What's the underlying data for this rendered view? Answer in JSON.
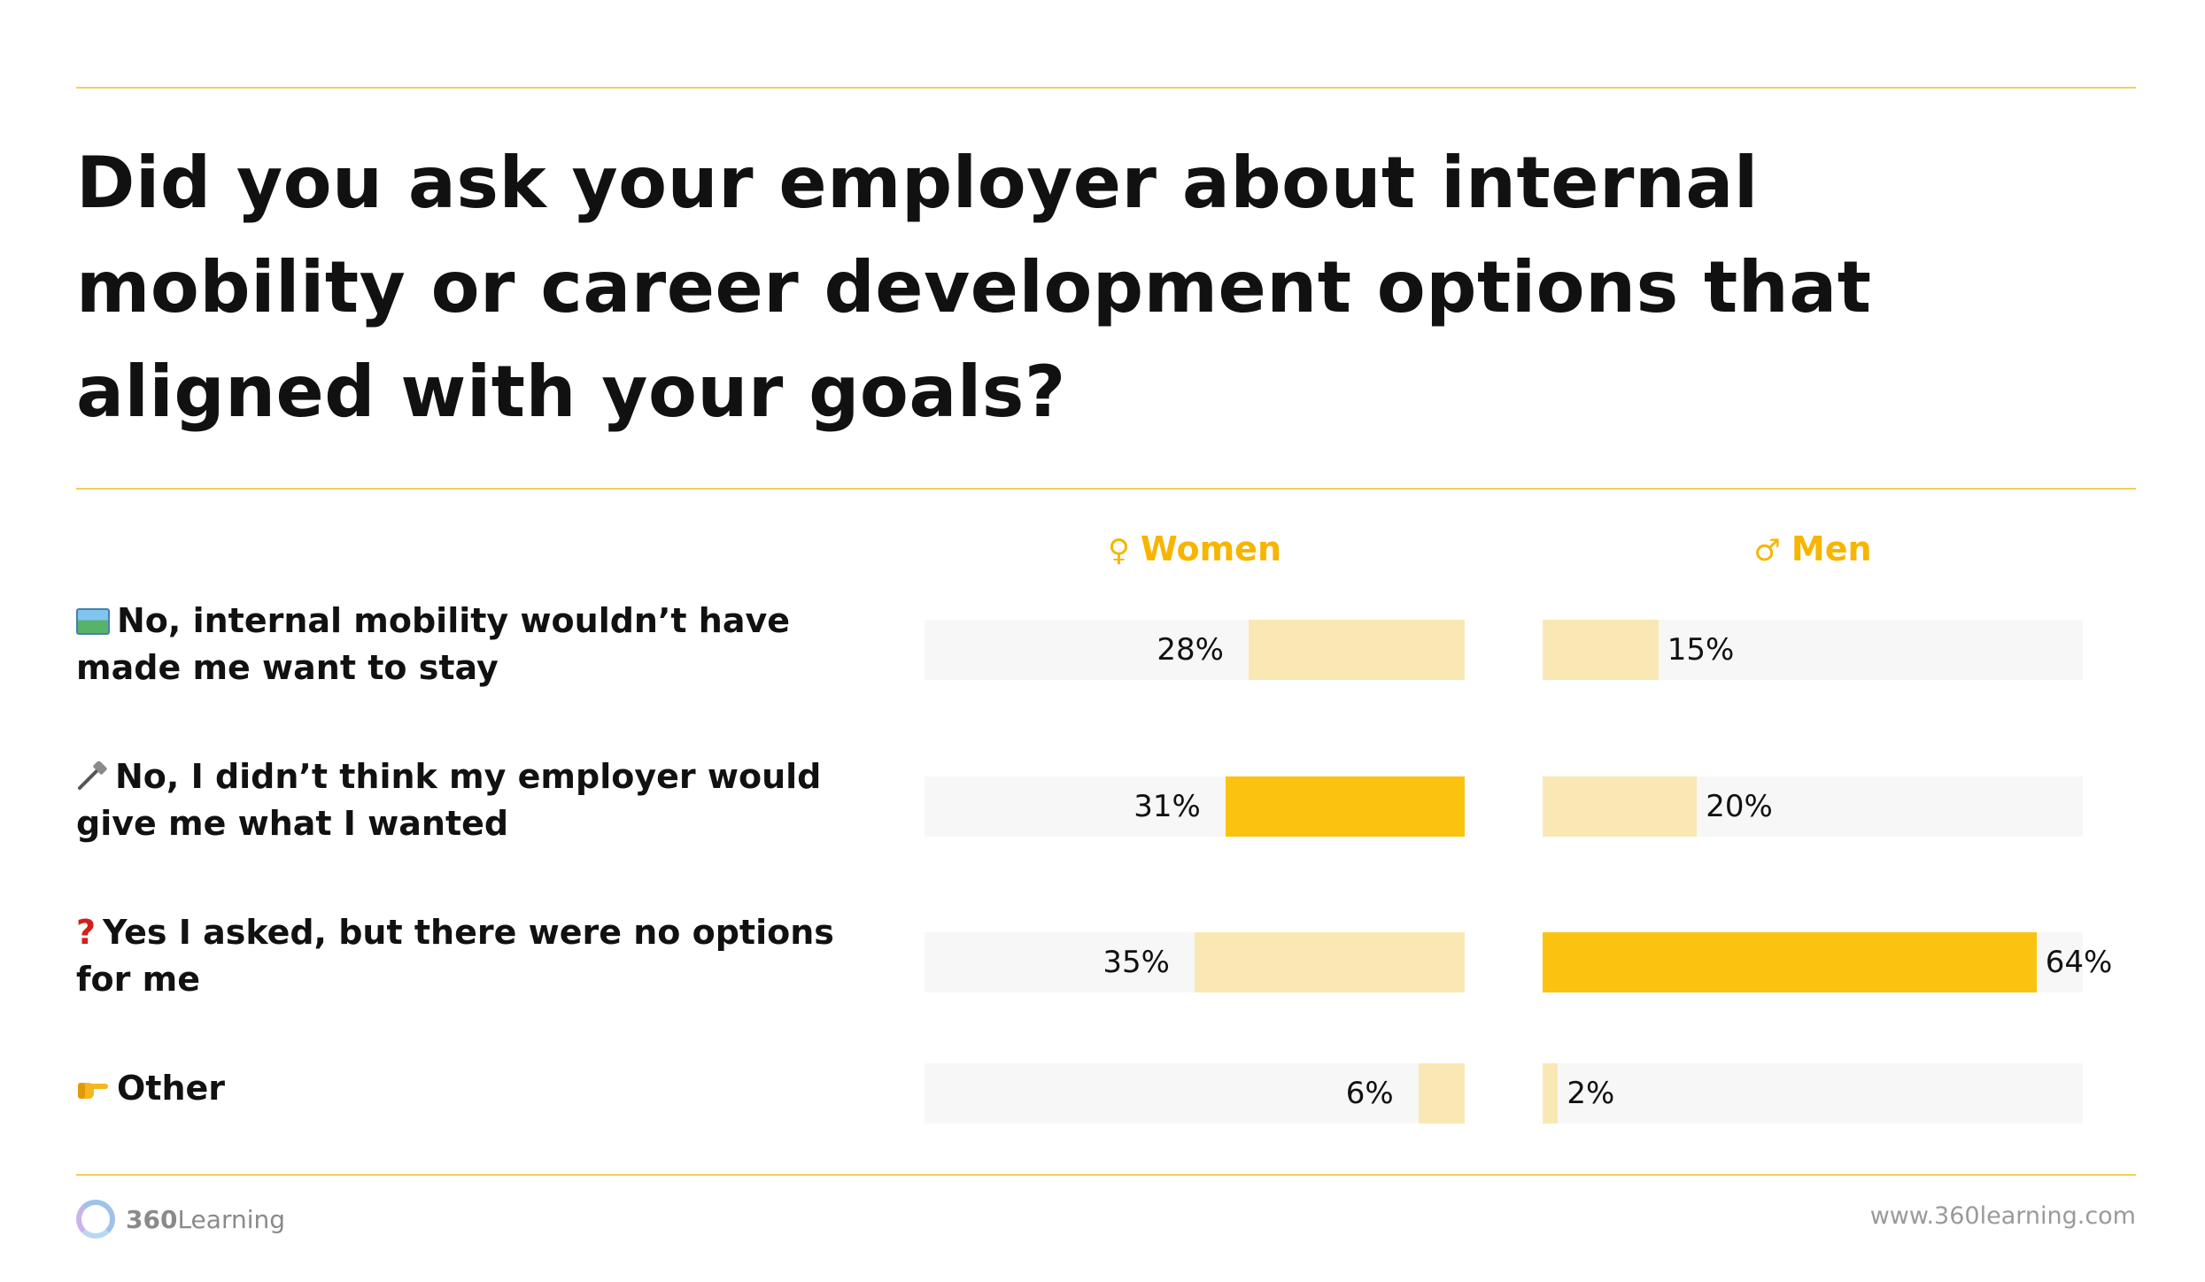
{
  "chart_data": {
    "type": "bar",
    "title": "Did you ask your employer about internal mobility or career development options that aligned with your goals?",
    "categories": [
      "No, internal mobility wouldn’t have made me want to stay",
      "No, I didn’t think my employer would give me what I wanted",
      "Yes I asked, but there were no options for me",
      "Other"
    ],
    "category_icons": [
      "map-icon",
      "hammer-wrench-icon",
      "question-mark-icon",
      "pointing-hand-icon"
    ],
    "series": [
      {
        "name": "Women",
        "symbol": "♀",
        "values": [
          28,
          31,
          35,
          6
        ],
        "labels": [
          "28%",
          "31%",
          "35%",
          "6%"
        ],
        "highlight_index": 1,
        "direction": "right-to-left"
      },
      {
        "name": "Men",
        "symbol": "♂",
        "values": [
          15,
          20,
          64,
          2
        ],
        "labels": [
          "15%",
          "20%",
          "64%",
          "2%"
        ],
        "highlight_index": 2,
        "direction": "left-to-right"
      }
    ],
    "xlim": [
      0,
      70
    ],
    "legend": "top",
    "colors": {
      "highlight": "#fbc30f",
      "bar": "#fae8b4",
      "track": "#f7f7f7",
      "legend_text": "#f7b500",
      "rule": "#f4cf55"
    }
  },
  "footer": {
    "brand_bold": "360",
    "brand_light": "Learning",
    "url": "www.360learning.com"
  }
}
